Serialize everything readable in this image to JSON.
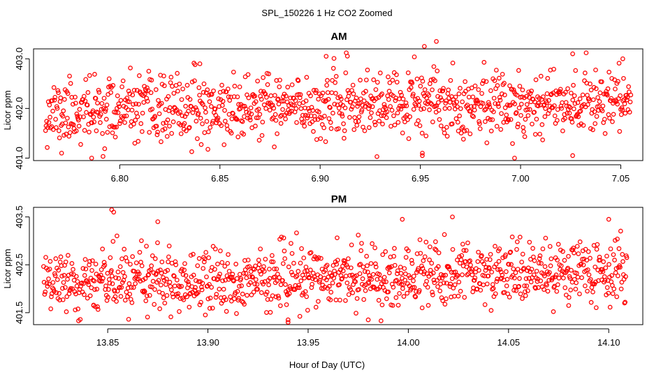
{
  "chart_data": {
    "type": "scatter",
    "title": "SPL_150226  1 Hz CO2 Zoomed",
    "xlabel": "Hour of Day (UTC)",
    "point_color": "#ff0000",
    "panels": [
      {
        "id": "am",
        "title": "AM",
        "ylabel": "Licor ppm",
        "xlim": [
          6.757,
          7.061
        ],
        "ylim": [
          400.95,
          403.2
        ],
        "xticks": [
          6.8,
          6.85,
          6.9,
          6.95,
          7.0,
          7.05
        ],
        "xtick_labels": [
          "6.80",
          "6.85",
          "6.90",
          "6.95",
          "7.00",
          "7.05"
        ],
        "yticks": [
          401.0,
          402.0,
          403.0
        ],
        "ytick_labels": [
          "401.0",
          "402.0",
          "403.0"
        ],
        "series": {
          "x_start": 6.763,
          "x_end": 7.055,
          "n": 1050,
          "base_mean": 402.05,
          "trend_per_hour": 0.9,
          "noise_sd": 0.32,
          "seed": 11
        },
        "outliers": [
          {
            "x": 6.958,
            "y": 403.35
          },
          {
            "x": 6.952,
            "y": 403.25
          },
          {
            "x": 7.026,
            "y": 403.1
          },
          {
            "x": 6.903,
            "y": 403.05
          },
          {
            "x": 7.051,
            "y": 403.0
          },
          {
            "x": 6.786,
            "y": 401.0
          },
          {
            "x": 6.997,
            "y": 401.0
          },
          {
            "x": 7.026,
            "y": 401.05
          },
          {
            "x": 6.951,
            "y": 401.1
          },
          {
            "x": 6.951,
            "y": 401.05
          },
          {
            "x": 6.771,
            "y": 401.1
          },
          {
            "x": 6.84,
            "y": 402.9
          }
        ]
      },
      {
        "id": "pm",
        "title": "PM",
        "ylabel": "Licor ppm",
        "xlim": [
          13.813,
          14.117
        ],
        "ylim": [
          401.25,
          403.7
        ],
        "xticks": [
          13.85,
          13.9,
          13.95,
          14.0,
          14.05,
          14.1
        ],
        "xtick_labels": [
          "13.85",
          "13.90",
          "13.95",
          "14.00",
          "14.05",
          "14.10"
        ],
        "yticks": [
          401.5,
          402.5,
          403.5
        ],
        "ytick_labels": [
          "401.5",
          "402.5",
          "403.5"
        ],
        "series": {
          "x_start": 13.818,
          "x_end": 14.109,
          "n": 1050,
          "base_mean": 402.25,
          "trend_per_hour": 0.8,
          "noise_sd": 0.32,
          "seed": 29
        },
        "outliers": [
          {
            "x": 13.852,
            "y": 403.65
          },
          {
            "x": 13.853,
            "y": 403.6
          },
          {
            "x": 14.022,
            "y": 403.5
          },
          {
            "x": 13.997,
            "y": 403.45
          },
          {
            "x": 14.1,
            "y": 403.45
          },
          {
            "x": 13.843,
            "y": 401.65
          },
          {
            "x": 13.94,
            "y": 401.35
          },
          {
            "x": 13.94,
            "y": 401.3
          },
          {
            "x": 13.98,
            "y": 401.35
          },
          {
            "x": 14.08,
            "y": 401.65
          },
          {
            "x": 13.875,
            "y": 403.4
          }
        ]
      }
    ]
  }
}
